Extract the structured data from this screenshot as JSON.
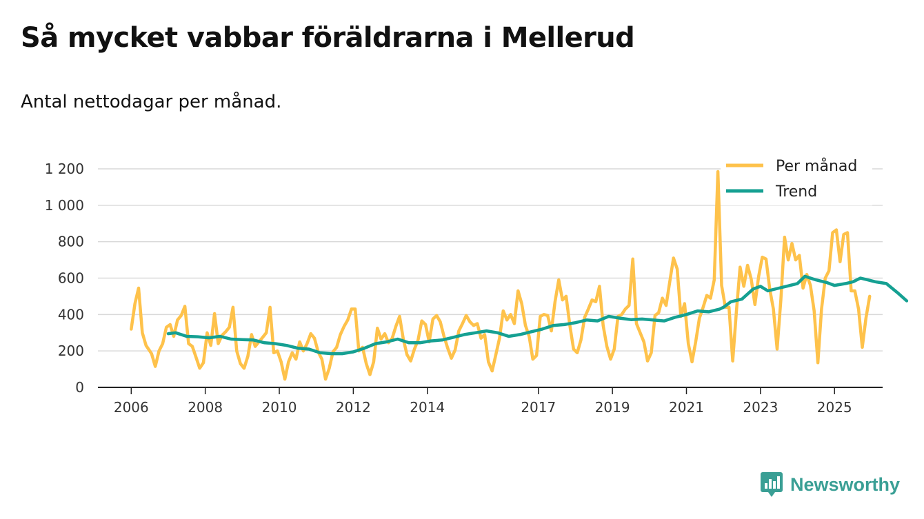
{
  "title": "Så mycket vabbar föräldrarna i Mellerud",
  "subtitle": "Antal nettodagar per månad.",
  "brand": {
    "name": "Newsworthy",
    "icon": "newsworthy-logo-icon"
  },
  "colors": {
    "monthly": "#fec24b",
    "trend": "#15a092",
    "grid": "#d9d9d9",
    "axis": "#222222"
  },
  "chart_data": {
    "type": "line",
    "title": "Så mycket vabbar föräldrarna i Mellerud",
    "subtitle": "Antal nettodagar per månad.",
    "xlabel": "",
    "ylabel": "",
    "xlim": [
      2005.1,
      2026.3
    ],
    "ylim": [
      0,
      1200
    ],
    "x_ticks": [
      2006,
      2008,
      2010,
      2012,
      2014,
      2017,
      2019,
      2021,
      2023,
      2025
    ],
    "x_tick_labels": [
      "2006",
      "2008",
      "2010",
      "2012",
      "2014",
      "2017",
      "2019",
      "2021",
      "2023",
      "2025"
    ],
    "y_ticks": [
      0,
      200,
      400,
      600,
      800,
      1000,
      1200
    ],
    "y_tick_labels": [
      "0",
      "200",
      "400",
      "600",
      "800",
      "1 000",
      "1 200"
    ],
    "grid": true,
    "legend_position": "top-right",
    "series": [
      {
        "name": "Per månad",
        "color": "#fec24b",
        "points": [
          [
            2006.0,
            320
          ],
          [
            2006.1,
            460
          ],
          [
            2006.2,
            545
          ],
          [
            2006.3,
            300
          ],
          [
            2006.4,
            230
          ],
          [
            2006.55,
            185
          ],
          [
            2006.65,
            115
          ],
          [
            2006.75,
            200
          ],
          [
            2006.85,
            240
          ],
          [
            2006.95,
            330
          ],
          [
            2007.05,
            345
          ],
          [
            2007.15,
            280
          ],
          [
            2007.25,
            370
          ],
          [
            2007.35,
            395
          ],
          [
            2007.45,
            445
          ],
          [
            2007.55,
            240
          ],
          [
            2007.65,
            225
          ],
          [
            2007.75,
            165
          ],
          [
            2007.85,
            105
          ],
          [
            2007.95,
            135
          ],
          [
            2008.05,
            300
          ],
          [
            2008.15,
            230
          ],
          [
            2008.25,
            405
          ],
          [
            2008.35,
            240
          ],
          [
            2008.45,
            285
          ],
          [
            2008.55,
            305
          ],
          [
            2008.65,
            330
          ],
          [
            2008.75,
            440
          ],
          [
            2008.85,
            200
          ],
          [
            2008.95,
            130
          ],
          [
            2009.05,
            105
          ],
          [
            2009.15,
            170
          ],
          [
            2009.25,
            290
          ],
          [
            2009.35,
            225
          ],
          [
            2009.45,
            250
          ],
          [
            2009.55,
            275
          ],
          [
            2009.65,
            300
          ],
          [
            2009.75,
            440
          ],
          [
            2009.85,
            190
          ],
          [
            2009.95,
            200
          ],
          [
            2010.05,
            140
          ],
          [
            2010.15,
            45
          ],
          [
            2010.25,
            140
          ],
          [
            2010.35,
            190
          ],
          [
            2010.45,
            155
          ],
          [
            2010.55,
            250
          ],
          [
            2010.65,
            200
          ],
          [
            2010.75,
            240
          ],
          [
            2010.85,
            295
          ],
          [
            2010.95,
            270
          ],
          [
            2011.05,
            195
          ],
          [
            2011.15,
            155
          ],
          [
            2011.25,
            45
          ],
          [
            2011.35,
            105
          ],
          [
            2011.45,
            195
          ],
          [
            2011.55,
            220
          ],
          [
            2011.65,
            290
          ],
          [
            2011.75,
            335
          ],
          [
            2011.85,
            370
          ],
          [
            2011.95,
            430
          ],
          [
            2012.05,
            430
          ],
          [
            2012.15,
            200
          ],
          [
            2012.25,
            220
          ],
          [
            2012.35,
            130
          ],
          [
            2012.45,
            70
          ],
          [
            2012.55,
            140
          ],
          [
            2012.65,
            325
          ],
          [
            2012.75,
            265
          ],
          [
            2012.85,
            295
          ],
          [
            2012.95,
            245
          ],
          [
            2013.05,
            270
          ],
          [
            2013.15,
            335
          ],
          [
            2013.25,
            390
          ],
          [
            2013.35,
            265
          ],
          [
            2013.45,
            180
          ],
          [
            2013.55,
            145
          ],
          [
            2013.65,
            210
          ],
          [
            2013.75,
            260
          ],
          [
            2013.85,
            365
          ],
          [
            2013.95,
            345
          ],
          [
            2014.05,
            250
          ],
          [
            2014.15,
            375
          ],
          [
            2014.25,
            395
          ],
          [
            2014.35,
            360
          ],
          [
            2014.45,
            280
          ],
          [
            2014.55,
            215
          ],
          [
            2014.65,
            160
          ],
          [
            2014.75,
            205
          ],
          [
            2014.85,
            310
          ],
          [
            2014.95,
            350
          ],
          [
            2015.05,
            395
          ],
          [
            2015.15,
            360
          ],
          [
            2015.25,
            340
          ],
          [
            2015.35,
            350
          ],
          [
            2015.45,
            270
          ],
          [
            2015.55,
            290
          ],
          [
            2015.65,
            140
          ],
          [
            2015.75,
            90
          ],
          [
            2015.85,
            180
          ],
          [
            2015.95,
            270
          ],
          [
            2016.05,
            420
          ],
          [
            2016.15,
            370
          ],
          [
            2016.25,
            400
          ],
          [
            2016.35,
            350
          ],
          [
            2016.45,
            530
          ],
          [
            2016.55,
            460
          ],
          [
            2016.65,
            340
          ],
          [
            2016.75,
            280
          ],
          [
            2016.85,
            155
          ],
          [
            2016.95,
            175
          ],
          [
            2017.05,
            390
          ],
          [
            2017.15,
            400
          ],
          [
            2017.25,
            395
          ],
          [
            2017.35,
            310
          ],
          [
            2017.45,
            470
          ],
          [
            2017.55,
            590
          ],
          [
            2017.65,
            480
          ],
          [
            2017.75,
            500
          ],
          [
            2017.85,
            340
          ],
          [
            2017.95,
            210
          ],
          [
            2018.05,
            190
          ],
          [
            2018.15,
            260
          ],
          [
            2018.25,
            385
          ],
          [
            2018.35,
            430
          ],
          [
            2018.45,
            480
          ],
          [
            2018.55,
            470
          ],
          [
            2018.65,
            555
          ],
          [
            2018.75,
            340
          ],
          [
            2018.85,
            225
          ],
          [
            2018.95,
            155
          ],
          [
            2019.05,
            210
          ],
          [
            2019.15,
            390
          ],
          [
            2019.25,
            400
          ],
          [
            2019.35,
            430
          ],
          [
            2019.45,
            450
          ],
          [
            2019.55,
            705
          ],
          [
            2019.65,
            350
          ],
          [
            2019.75,
            300
          ],
          [
            2019.85,
            250
          ],
          [
            2019.95,
            145
          ],
          [
            2020.05,
            190
          ],
          [
            2020.15,
            395
          ],
          [
            2020.25,
            410
          ],
          [
            2020.35,
            490
          ],
          [
            2020.45,
            450
          ],
          [
            2020.55,
            580
          ],
          [
            2020.65,
            710
          ],
          [
            2020.75,
            650
          ],
          [
            2020.85,
            390
          ],
          [
            2020.95,
            460
          ],
          [
            2021.05,
            240
          ],
          [
            2021.15,
            140
          ],
          [
            2021.25,
            250
          ],
          [
            2021.35,
            380
          ],
          [
            2021.45,
            440
          ],
          [
            2021.55,
            505
          ],
          [
            2021.65,
            490
          ],
          [
            2021.75,
            590
          ],
          [
            2021.85,
            1185
          ],
          [
            2021.95,
            560
          ],
          [
            2022.05,
            440
          ],
          [
            2022.15,
            440
          ],
          [
            2022.25,
            145
          ],
          [
            2022.35,
            420
          ],
          [
            2022.45,
            660
          ],
          [
            2022.55,
            555
          ],
          [
            2022.65,
            670
          ],
          [
            2022.75,
            595
          ],
          [
            2022.85,
            455
          ],
          [
            2022.95,
            610
          ],
          [
            2023.05,
            715
          ],
          [
            2023.15,
            705
          ],
          [
            2023.25,
            540
          ],
          [
            2023.35,
            430
          ],
          [
            2023.45,
            210
          ],
          [
            2023.55,
            480
          ],
          [
            2023.65,
            825
          ],
          [
            2023.75,
            700
          ],
          [
            2023.85,
            790
          ],
          [
            2023.95,
            700
          ],
          [
            2024.05,
            725
          ],
          [
            2024.15,
            545
          ],
          [
            2024.25,
            620
          ],
          [
            2024.35,
            560
          ],
          [
            2024.45,
            420
          ],
          [
            2024.55,
            135
          ],
          [
            2024.65,
            430
          ],
          [
            2024.75,
            600
          ],
          [
            2024.85,
            640
          ],
          [
            2024.95,
            850
          ],
          [
            2025.05,
            865
          ],
          [
            2025.15,
            690
          ],
          [
            2025.25,
            840
          ],
          [
            2025.35,
            850
          ],
          [
            2025.45,
            530
          ],
          [
            2025.55,
            530
          ],
          [
            2025.65,
            430
          ],
          [
            2025.75,
            220
          ],
          [
            2025.85,
            380
          ],
          [
            2025.95,
            500
          ]
        ]
      },
      {
        "name": "Trend",
        "color": "#15a092",
        "points": [
          [
            2007.0,
            295
          ],
          [
            2007.2,
            300
          ],
          [
            2007.5,
            280
          ],
          [
            2007.8,
            278
          ],
          [
            2008.1,
            272
          ],
          [
            2008.4,
            280
          ],
          [
            2008.7,
            265
          ],
          [
            2009.0,
            262
          ],
          [
            2009.3,
            260
          ],
          [
            2009.6,
            245
          ],
          [
            2009.9,
            240
          ],
          [
            2010.2,
            230
          ],
          [
            2010.5,
            215
          ],
          [
            2010.8,
            210
          ],
          [
            2011.1,
            190
          ],
          [
            2011.4,
            185
          ],
          [
            2011.7,
            185
          ],
          [
            2012.0,
            195
          ],
          [
            2012.3,
            215
          ],
          [
            2012.6,
            240
          ],
          [
            2012.9,
            250
          ],
          [
            2013.2,
            265
          ],
          [
            2013.5,
            245
          ],
          [
            2013.8,
            245
          ],
          [
            2014.1,
            255
          ],
          [
            2014.4,
            260
          ],
          [
            2014.7,
            275
          ],
          [
            2015.0,
            290
          ],
          [
            2015.3,
            300
          ],
          [
            2015.6,
            310
          ],
          [
            2015.9,
            300
          ],
          [
            2016.2,
            280
          ],
          [
            2016.5,
            290
          ],
          [
            2016.8,
            305
          ],
          [
            2017.1,
            320
          ],
          [
            2017.4,
            340
          ],
          [
            2017.7,
            345
          ],
          [
            2018.0,
            355
          ],
          [
            2018.3,
            370
          ],
          [
            2018.6,
            365
          ],
          [
            2018.9,
            390
          ],
          [
            2019.2,
            380
          ],
          [
            2019.5,
            372
          ],
          [
            2019.8,
            375
          ],
          [
            2020.1,
            370
          ],
          [
            2020.4,
            365
          ],
          [
            2020.7,
            385
          ],
          [
            2021.0,
            400
          ],
          [
            2021.3,
            420
          ],
          [
            2021.6,
            415
          ],
          [
            2021.9,
            430
          ],
          [
            2022.0,
            440
          ],
          [
            2022.2,
            470
          ],
          [
            2022.5,
            485
          ],
          [
            2022.8,
            540
          ],
          [
            2023.0,
            555
          ],
          [
            2023.2,
            530
          ],
          [
            2023.5,
            545
          ],
          [
            2023.8,
            560
          ],
          [
            2024.0,
            570
          ],
          [
            2024.2,
            610
          ],
          [
            2024.5,
            590
          ],
          [
            2024.8,
            575
          ],
          [
            2025.0,
            560
          ],
          [
            2025.3,
            570
          ],
          [
            2025.5,
            580
          ],
          [
            2025.7,
            600
          ],
          [
            2025.9,
            590
          ],
          [
            2026.1,
            580
          ],
          [
            2026.4,
            570
          ],
          [
            2026.7,
            520
          ],
          [
            2026.95,
            475
          ]
        ]
      }
    ]
  }
}
